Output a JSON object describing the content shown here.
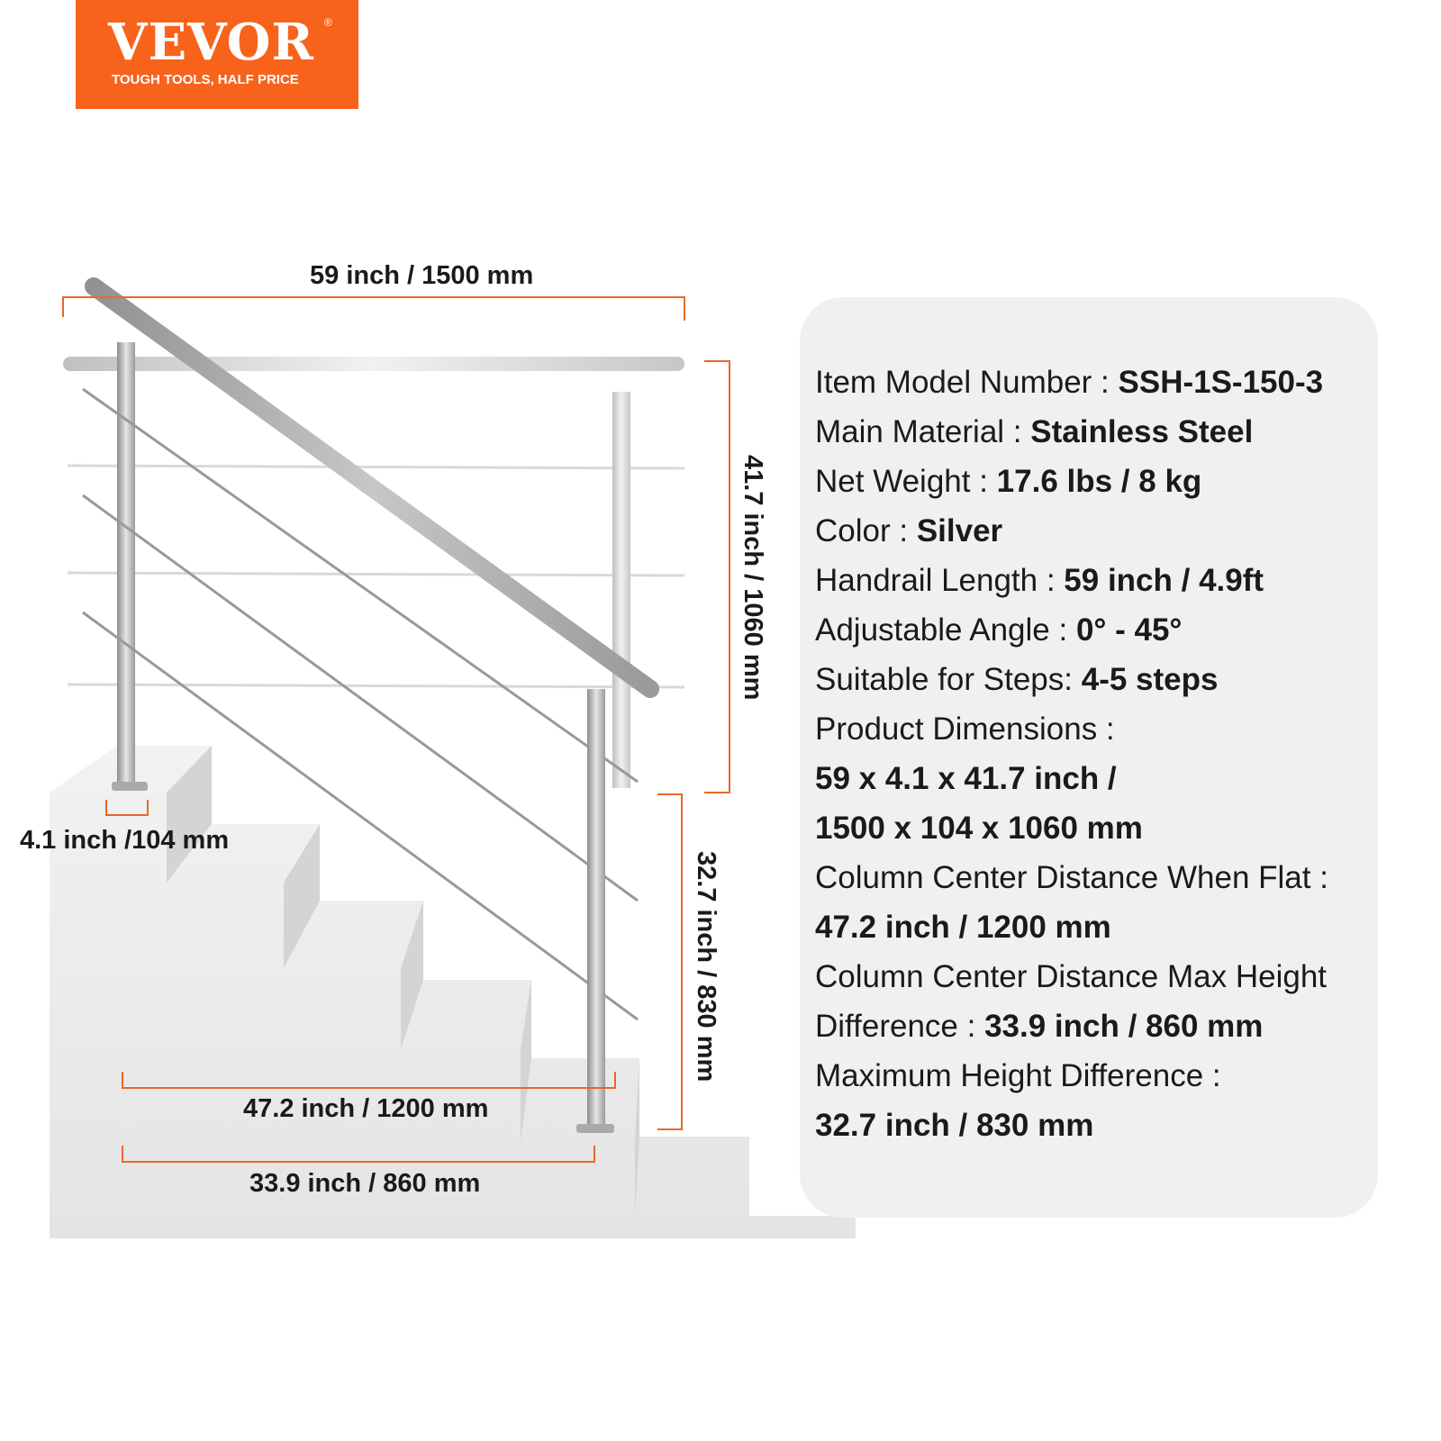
{
  "logo": {
    "brand": "VEVOR",
    "registered": "®",
    "tagline": "TOUGH TOOLS, HALF PRICE",
    "color": "#f7631b"
  },
  "dimensions": {
    "length": "59 inch / 1500 mm",
    "height": "41.7 inch / 1060 mm",
    "base": "4.1 inch /104 mm",
    "max_height_diff": "32.7 inch / 830 mm",
    "flat_distance": "47.2 inch / 1200 mm",
    "max_height_distance": "33.9 inch / 860 mm",
    "line_color": "#e8672a"
  },
  "specs": [
    {
      "label": "Item Model Number :  ",
      "value": "SSH-1S-150-3"
    },
    {
      "label": "Main Material :  ",
      "value": "Stainless Steel"
    },
    {
      "label": "Net Weight :  ",
      "value": "17.6 lbs / 8 kg"
    },
    {
      "label": "Color :  ",
      "value": "Silver"
    },
    {
      "label": "Handrail Length :  ",
      "value": "59 inch / 4.9ft"
    },
    {
      "label": "Adjustable Angle :  ",
      "value": "0° - 45°"
    },
    {
      "label": "Suitable for Steps: ",
      "value": "4-5 steps"
    },
    {
      "label": "Product Dimensions :",
      "value": ""
    },
    {
      "label": "",
      "value": "59 x 4.1 x 41.7 inch /"
    },
    {
      "label": "",
      "value": "1500 x 104 x 1060 mm"
    },
    {
      "label": "Column Center Distance When Flat :",
      "value": ""
    },
    {
      "label": "",
      "value": "47.2 inch / 1200 mm"
    },
    {
      "label": "Column Center Distance Max Height",
      "value": ""
    },
    {
      "label": "Difference :  ",
      "value": "33.9 inch / 860 mm"
    },
    {
      "label": "Maximum Height Difference :",
      "value": ""
    },
    {
      "label": "",
      "value": "32.7 inch / 830 mm"
    }
  ]
}
